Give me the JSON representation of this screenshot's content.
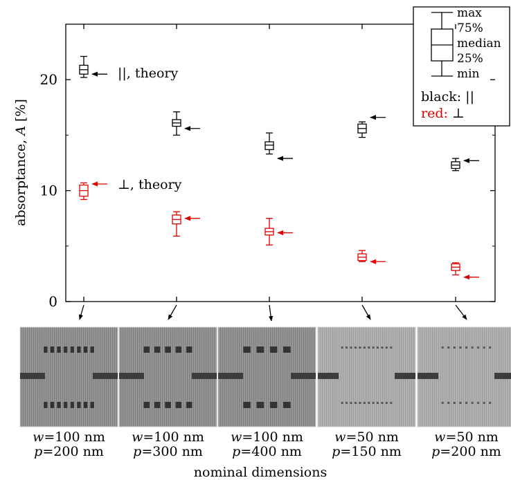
{
  "chart_data": {
    "type": "boxplot",
    "ylabel_text": "absorptance, ",
    "ylabel_symbol": "A",
    "ylabel_unit": " [%]",
    "xlabel": "nominal dimensions",
    "ylim": [
      0,
      25
    ],
    "yticks": [
      "0",
      "10",
      "20"
    ],
    "legend": {
      "box_labels": [
        "max",
        "75%",
        "median",
        "25%",
        "min"
      ],
      "black_label": "black:",
      "black_symbol": "||",
      "red_label": "red:",
      "red_symbol": "⊥",
      "placement": "top-right"
    },
    "annotations": {
      "parallel_theory": "||, theory",
      "perp_theory": "⊥, theory"
    },
    "colors": {
      "parallel": "#000000",
      "perpendicular": "#e00000"
    },
    "categories": [
      {
        "w_name": "w",
        "w_value": "=100 nm",
        "p_name": "p",
        "p_value": "=200 nm"
      },
      {
        "w_name": "w",
        "w_value": "=100 nm",
        "p_name": "p",
        "p_value": "=300 nm"
      },
      {
        "w_name": "w",
        "w_value": "=100 nm",
        "p_name": "p",
        "p_value": "=400 nm"
      },
      {
        "w_name": "w",
        "w_value": "=50 nm",
        "p_name": "p",
        "p_value": "=150 nm"
      },
      {
        "w_name": "w",
        "w_value": "=50 nm",
        "p_name": "p",
        "p_value": "=200 nm"
      }
    ],
    "series": [
      {
        "name": "||",
        "color": "#000000",
        "boxes": [
          {
            "min": 20.2,
            "q1": 20.5,
            "median": 20.9,
            "q3": 21.3,
            "max": 22.1
          },
          {
            "min": 15.0,
            "q1": 15.8,
            "median": 16.1,
            "q3": 16.4,
            "max": 17.1
          },
          {
            "min": 13.3,
            "q1": 13.7,
            "median": 14.1,
            "q3": 14.4,
            "max": 15.2
          },
          {
            "min": 14.8,
            "q1": 15.2,
            "median": 15.6,
            "q3": 16.0,
            "max": 16.2
          },
          {
            "min": 11.8,
            "q1": 12.0,
            "median": 12.3,
            "q3": 12.6,
            "max": 12.9
          }
        ],
        "theory": [
          20.5,
          15.6,
          12.9,
          16.6,
          12.7
        ]
      },
      {
        "name": "⊥",
        "color": "#e00000",
        "boxes": [
          {
            "min": 9.2,
            "q1": 9.5,
            "median": 10.0,
            "q3": 10.5,
            "max": 10.7
          },
          {
            "min": 5.9,
            "q1": 7.0,
            "median": 7.4,
            "q3": 7.8,
            "max": 8.1
          },
          {
            "min": 5.1,
            "q1": 6.0,
            "median": 6.3,
            "q3": 6.6,
            "max": 7.5
          },
          {
            "min": 3.6,
            "q1": 3.7,
            "median": 4.0,
            "q3": 4.3,
            "max": 4.6
          },
          {
            "min": 2.4,
            "q1": 2.8,
            "median": 3.1,
            "q3": 3.4,
            "max": 3.5
          }
        ],
        "theory": [
          10.6,
          7.5,
          6.2,
          3.6,
          2.2
        ]
      }
    ],
    "images": {
      "panel_count": 5,
      "pad_counts": [
        8,
        5,
        4,
        12,
        9
      ]
    }
  }
}
